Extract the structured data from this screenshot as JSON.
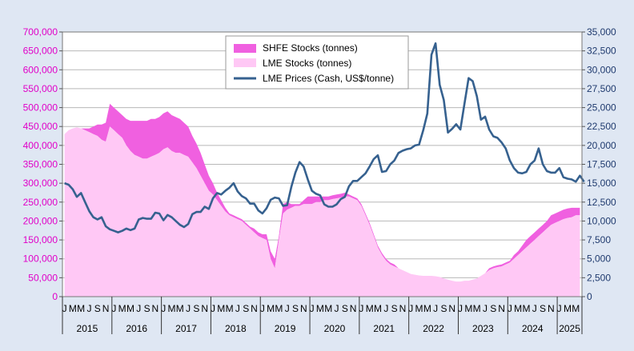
{
  "chart_data": {
    "type": "area",
    "title": "",
    "xlabel": "",
    "left_axis": {
      "ylim": [
        0,
        700000
      ],
      "ticks": [
        "0",
        "50,000",
        "100,000",
        "150,000",
        "200,000",
        "250,000",
        "300,000",
        "350,000",
        "400,000",
        "450,000",
        "500,000",
        "550,000",
        "600,000",
        "650,000",
        "700,000"
      ],
      "tick_color": "#e000c8"
    },
    "right_axis": {
      "ylim": [
        0,
        35000
      ],
      "ticks": [
        "0",
        "2,500",
        "5,000",
        "7,500",
        "10,000",
        "12,500",
        "15,000",
        "17,500",
        "20,000",
        "22,500",
        "25,000",
        "27,500",
        "30,000",
        "32,500",
        "35,000"
      ],
      "tick_color": "#1f3a6e"
    },
    "x_period": {
      "start": "2015-01",
      "months": 126
    },
    "month_labels": [
      "J",
      "M",
      "M",
      "J",
      "S",
      "N"
    ],
    "years": [
      "2015",
      "2016",
      "2017",
      "2018",
      "2019",
      "2020",
      "2021",
      "2022",
      "2023",
      "2024",
      "2025"
    ],
    "legend_position": "top-center",
    "series": [
      {
        "name": "SHFE Stocks (tonnes)",
        "type": "stacked-area",
        "axis": "left",
        "color": "#f060e0",
        "values": [
          0,
          0,
          0,
          0,
          0,
          5000,
          10000,
          20000,
          30000,
          40000,
          50000,
          60000,
          60000,
          60000,
          60000,
          70000,
          80000,
          90000,
          95000,
          100000,
          100000,
          100000,
          95000,
          95000,
          95000,
          95000,
          95000,
          95000,
          90000,
          85000,
          80000,
          70000,
          65000,
          60000,
          50000,
          40000,
          30000,
          20000,
          15000,
          10000,
          5000,
          5000,
          5000,
          5000,
          5000,
          5000,
          10000,
          10000,
          10000,
          15000,
          20000,
          25000,
          10000,
          25000,
          20000,
          10000,
          5000,
          5000,
          10000,
          20000,
          20000,
          15000,
          15000,
          10000,
          10000,
          10000,
          10000,
          10000,
          10000,
          5000,
          5000,
          5000,
          5000,
          5000,
          5000,
          5000,
          5000,
          5000,
          5000,
          5000,
          5000,
          0,
          0,
          0,
          0,
          0,
          0,
          0,
          0,
          0,
          0,
          0,
          0,
          0,
          0,
          0,
          0,
          0,
          0,
          0,
          0,
          0,
          0,
          5000,
          5000,
          5000,
          5000,
          5000,
          5000,
          10000,
          10000,
          15000,
          20000,
          20000,
          20000,
          20000,
          20000,
          20000,
          25000,
          25000,
          25000,
          25000,
          25000,
          25000,
          20000,
          20000
        ]
      },
      {
        "name": "LME Stocks (tonnes)",
        "type": "area",
        "axis": "left",
        "color": "#ffc8f5",
        "values": [
          430000,
          440000,
          445000,
          448000,
          445000,
          440000,
          435000,
          430000,
          425000,
          415000,
          410000,
          450000,
          440000,
          430000,
          420000,
          400000,
          385000,
          375000,
          370000,
          365000,
          365000,
          370000,
          375000,
          380000,
          390000,
          395000,
          385000,
          380000,
          380000,
          375000,
          370000,
          355000,
          340000,
          320000,
          300000,
          280000,
          270000,
          255000,
          240000,
          225000,
          215000,
          210000,
          205000,
          200000,
          190000,
          180000,
          170000,
          160000,
          155000,
          150000,
          100000,
          75000,
          150000,
          220000,
          230000,
          235000,
          240000,
          240000,
          245000,
          245000,
          245000,
          250000,
          250000,
          255000,
          255000,
          258000,
          260000,
          262000,
          265000,
          265000,
          260000,
          255000,
          240000,
          215000,
          190000,
          160000,
          130000,
          110000,
          95000,
          85000,
          80000,
          75000,
          70000,
          65000,
          60000,
          58000,
          56000,
          55000,
          55000,
          55000,
          54000,
          52000,
          48000,
          45000,
          42000,
          40000,
          40000,
          42000,
          42000,
          45000,
          48000,
          55000,
          62000,
          70000,
          75000,
          78000,
          80000,
          85000,
          90000,
          100000,
          110000,
          120000,
          130000,
          140000,
          150000,
          160000,
          170000,
          180000,
          190000,
          195000,
          200000,
          205000,
          208000,
          210000,
          215000,
          215000
        ]
      },
      {
        "name": "LME Prices (Cash, US$/tonne)",
        "type": "line",
        "axis": "right",
        "color": "#36618f",
        "values": [
          15000,
          14800,
          14200,
          13200,
          13700,
          12500,
          11300,
          10500,
          10200,
          10500,
          9300,
          8900,
          8700,
          8500,
          8700,
          9000,
          8800,
          9000,
          10200,
          10400,
          10300,
          10300,
          11100,
          11000,
          10100,
          10800,
          10500,
          10000,
          9500,
          9200,
          9600,
          10900,
          11200,
          11200,
          11900,
          11600,
          13000,
          13700,
          13500,
          14000,
          14400,
          15000,
          13900,
          13300,
          13000,
          12300,
          12300,
          11400,
          11000,
          11700,
          12800,
          13100,
          13000,
          12000,
          12100,
          14500,
          16400,
          17800,
          17200,
          15500,
          14000,
          13600,
          13400,
          12200,
          11900,
          11900,
          12200,
          12900,
          13200,
          14600,
          15300,
          15300,
          15800,
          16300,
          17200,
          18200,
          18700,
          16500,
          16600,
          17500,
          18000,
          19000,
          19300,
          19500,
          19600,
          20000,
          20100,
          22000,
          24200,
          32000,
          33500,
          28000,
          26000,
          21700,
          22200,
          22800,
          22100,
          25500,
          28900,
          28500,
          26500,
          23400,
          23800,
          22100,
          21200,
          21000,
          20400,
          19600,
          18000,
          17000,
          16400,
          16300,
          16500,
          17500,
          18000,
          19600,
          17500,
          16600,
          16400,
          16400,
          17000,
          15800,
          15600,
          15500,
          15200,
          16000,
          15200
        ]
      }
    ]
  }
}
